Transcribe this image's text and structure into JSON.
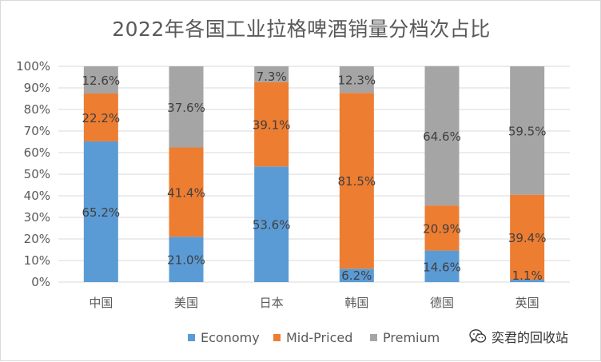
{
  "chart_data": {
    "type": "bar",
    "stacked": "percent",
    "title": "2022年各国工业拉格啤酒销量分档次占比",
    "categories": [
      "中国",
      "美国",
      "日本",
      "韩国",
      "德国",
      "英国"
    ],
    "series": [
      {
        "name": "Economy",
        "color": "#5b9bd5",
        "values": [
          65.2,
          21.0,
          53.6,
          6.2,
          14.6,
          1.1
        ]
      },
      {
        "name": "Mid-Priced",
        "color": "#ed7d31",
        "values": [
          22.2,
          41.4,
          39.1,
          81.5,
          20.9,
          39.4
        ]
      },
      {
        "name": "Premium",
        "color": "#a5a5a5",
        "values": [
          12.6,
          37.6,
          7.3,
          12.3,
          64.6,
          59.5
        ]
      }
    ],
    "labels": [
      [
        "65.2%",
        "21.0%",
        "53.6%",
        "6.2%",
        "14.6%",
        "1.1%"
      ],
      [
        "22.2%",
        "41.4%",
        "39.1%",
        "81.5%",
        "20.9%",
        "39.4%"
      ],
      [
        "12.6%",
        "37.6%",
        "7.3%",
        "12.3%",
        "64.6%",
        "59.5%"
      ]
    ],
    "yticks": [
      "0%",
      "10%",
      "20%",
      "30%",
      "40%",
      "50%",
      "60%",
      "70%",
      "80%",
      "90%",
      "100%"
    ],
    "ylim": [
      0,
      100
    ],
    "grid": true,
    "legend": "bottom"
  },
  "watermark": {
    "text": "奕君的回收站",
    "icon": "wechat-icon"
  }
}
